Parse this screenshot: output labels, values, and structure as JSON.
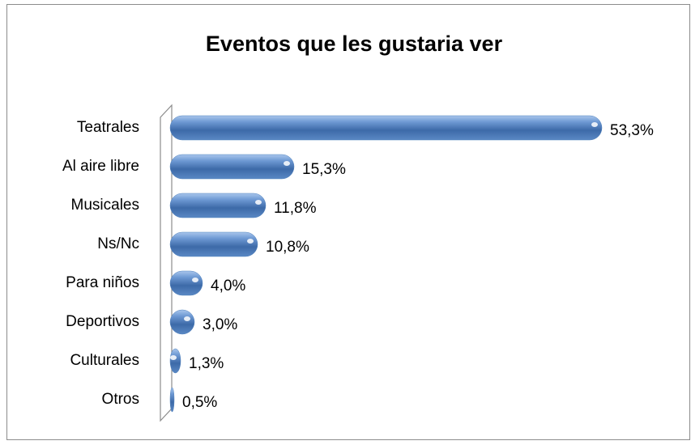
{
  "chart_data": {
    "type": "bar",
    "orientation": "horizontal",
    "title": "Eventos que les gustaria ver",
    "categories": [
      "Teatrales",
      "Al aire libre",
      "Musicales",
      "Ns/Nc",
      "Para niños",
      "Deportivos",
      "Culturales",
      "Otros"
    ],
    "values": [
      53.3,
      15.3,
      11.8,
      10.8,
      4.0,
      3.0,
      1.3,
      0.5
    ],
    "value_labels": [
      "53,3%",
      "15,3%",
      "11,8%",
      "10,8%",
      "4,0%",
      "3,0%",
      "1,3%",
      "0,5%"
    ],
    "color": "#4f81bd"
  }
}
